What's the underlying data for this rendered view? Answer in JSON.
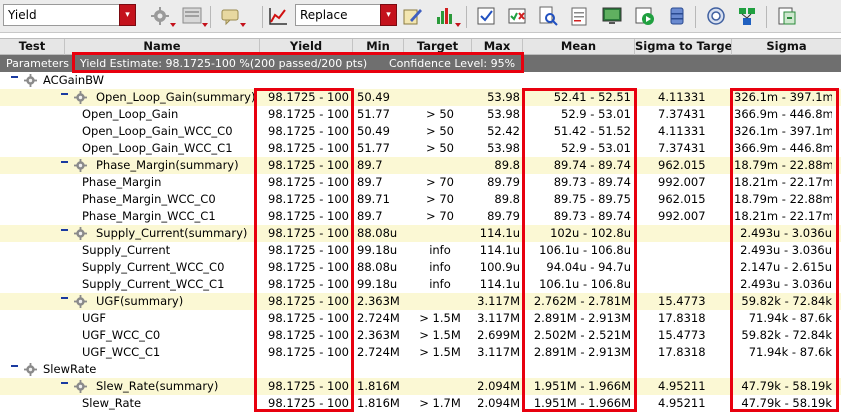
{
  "toolbar": {
    "mode_select": "Yield",
    "mode_arrow": "▾",
    "history_select": "Replace",
    "history_arrow": "▾",
    "accent": "#c4121c",
    "buttons": [
      "run-options-icon",
      "layout-icon",
      "comment-icon",
      "plot-icon",
      "edit-icon",
      "histogram-icon",
      "checklist-icon",
      "check-error-icon",
      "zoom-doc-icon",
      "notes-icon",
      "monitor-icon",
      "play-icon",
      "database-icon",
      "target-icon",
      "tree-icon",
      "export-icon"
    ]
  },
  "header": {
    "test": "Test",
    "name": "Name",
    "yield": "Yield",
    "min": "Min",
    "target": "Target",
    "max": "Max",
    "mean": "Mean",
    "sigma_to_target": "Sigma to Target",
    "sigma": "Sigma"
  },
  "params": {
    "label": "Parameters",
    "yield_estimate": "Yield Estimate: 98.1725-100 %(200 passed/200 pts)",
    "confidence": "Confidence Level: 95%"
  },
  "tests": [
    {
      "name": "ACGainBW",
      "groups": [
        {
          "summary": {
            "name": "Open_Loop_Gain(summary)",
            "yield": "98.1725 - 100",
            "min": "50.49",
            "target": "",
            "max": "53.98",
            "mean": "52.41 - 52.51",
            "sigma_to_target": "4.11331",
            "sigma": "326.1m - 397.1m"
          },
          "items": [
            {
              "name": "Open_Loop_Gain",
              "yield": "98.1725 - 100",
              "min": "51.77",
              "target": "> 50",
              "max": "53.98",
              "mean": "52.9 - 53.01",
              "sigma_to_target": "7.37431",
              "sigma": "366.9m - 446.8m"
            },
            {
              "name": "Open_Loop_Gain_WCC_C0",
              "yield": "98.1725 - 100",
              "min": "50.49",
              "target": "> 50",
              "max": "52.42",
              "mean": "51.42 - 51.52",
              "sigma_to_target": "4.11331",
              "sigma": "326.1m - 397.1m"
            },
            {
              "name": "Open_Loop_Gain_WCC_C1",
              "yield": "98.1725 - 100",
              "min": "51.77",
              "target": "> 50",
              "max": "53.98",
              "mean": "52.9 - 53.01",
              "sigma_to_target": "7.37431",
              "sigma": "366.9m - 446.8m"
            }
          ]
        },
        {
          "summary": {
            "name": "Phase_Margin(summary)",
            "yield": "98.1725 - 100",
            "min": "89.7",
            "target": "",
            "max": "89.8",
            "mean": "89.74 - 89.74",
            "sigma_to_target": "962.015",
            "sigma": "18.79m - 22.88m"
          },
          "items": [
            {
              "name": "Phase_Margin",
              "yield": "98.1725 - 100",
              "min": "89.7",
              "target": "> 70",
              "max": "89.79",
              "mean": "89.73 - 89.74",
              "sigma_to_target": "992.007",
              "sigma": "18.21m - 22.17m"
            },
            {
              "name": "Phase_Margin_WCC_C0",
              "yield": "98.1725 - 100",
              "min": "89.71",
              "target": "> 70",
              "max": "89.8",
              "mean": "89.75 - 89.75",
              "sigma_to_target": "962.015",
              "sigma": "18.79m - 22.88m"
            },
            {
              "name": "Phase_Margin_WCC_C1",
              "yield": "98.1725 - 100",
              "min": "89.7",
              "target": "> 70",
              "max": "89.79",
              "mean": "89.73 - 89.74",
              "sigma_to_target": "992.007",
              "sigma": "18.21m - 22.17m"
            }
          ]
        },
        {
          "summary": {
            "name": "Supply_Current(summary)",
            "yield": "98.1725 - 100",
            "min": "88.08u",
            "target": "",
            "max": "114.1u",
            "mean": "102u - 102.8u",
            "sigma_to_target": "",
            "sigma": "2.493u - 3.036u"
          },
          "items": [
            {
              "name": "Supply_Current",
              "yield": "98.1725 - 100",
              "min": "99.18u",
              "target": "info",
              "max": "114.1u",
              "mean": "106.1u - 106.8u",
              "sigma_to_target": "",
              "sigma": "2.493u - 3.036u"
            },
            {
              "name": "Supply_Current_WCC_C0",
              "yield": "98.1725 - 100",
              "min": "88.08u",
              "target": "info",
              "max": "100.9u",
              "mean": "94.04u - 94.7u",
              "sigma_to_target": "",
              "sigma": "2.147u - 2.615u"
            },
            {
              "name": "Supply_Current_WCC_C1",
              "yield": "98.1725 - 100",
              "min": "99.18u",
              "target": "info",
              "max": "114.1u",
              "mean": "106.1u - 106.8u",
              "sigma_to_target": "",
              "sigma": "2.493u - 3.036u"
            }
          ]
        },
        {
          "summary": {
            "name": "UGF(summary)",
            "yield": "98.1725 - 100",
            "min": "2.363M",
            "target": "",
            "max": "3.117M",
            "mean": "2.762M - 2.781M",
            "sigma_to_target": "15.4773",
            "sigma": "59.82k - 72.84k"
          },
          "items": [
            {
              "name": "UGF",
              "yield": "98.1725 - 100",
              "min": "2.724M",
              "target": "> 1.5M",
              "max": "3.117M",
              "mean": "2.891M - 2.913M",
              "sigma_to_target": "17.8318",
              "sigma": "71.94k - 87.6k"
            },
            {
              "name": "UGF_WCC_C0",
              "yield": "98.1725 - 100",
              "min": "2.363M",
              "target": "> 1.5M",
              "max": "2.699M",
              "mean": "2.502M - 2.521M",
              "sigma_to_target": "15.4773",
              "sigma": "59.82k - 72.84k"
            },
            {
              "name": "UGF_WCC_C1",
              "yield": "98.1725 - 100",
              "min": "2.724M",
              "target": "> 1.5M",
              "max": "3.117M",
              "mean": "2.891M - 2.913M",
              "sigma_to_target": "17.8318",
              "sigma": "71.94k - 87.6k"
            }
          ]
        }
      ]
    },
    {
      "name": "SlewRate",
      "groups": [
        {
          "summary": {
            "name": "Slew_Rate(summary)",
            "yield": "98.1725 - 100",
            "min": "1.816M",
            "target": "",
            "max": "2.094M",
            "mean": "1.951M - 1.966M",
            "sigma_to_target": "4.95211",
            "sigma": "47.79k - 58.19k"
          },
          "items": [
            {
              "name": "Slew_Rate",
              "yield": "98.1725 - 100",
              "min": "1.816M",
              "target": "> 1.7M",
              "max": "2.094M",
              "mean": "1.951M - 1.966M",
              "sigma_to_target": "4.95211",
              "sigma": "47.79k - 58.19k"
            }
          ]
        }
      ]
    }
  ],
  "colors": {
    "summary_row": "#fbf8d4",
    "params_bar": "#6f6f6f",
    "highlight": "#e8000e",
    "tree_toggle": "#1a3aa0"
  }
}
